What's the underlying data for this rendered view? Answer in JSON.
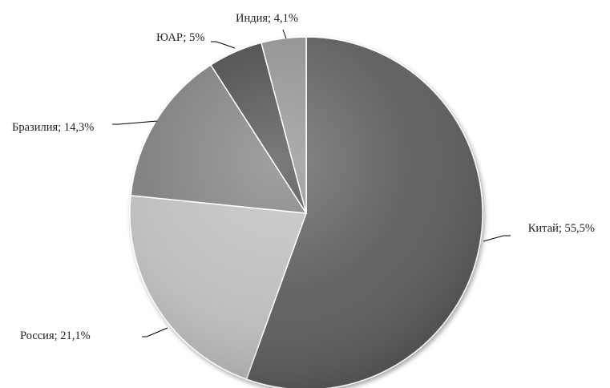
{
  "chart_data": {
    "type": "pie",
    "title": "",
    "slices": [
      {
        "name": "Китай",
        "value": 55.5,
        "label": "Китай; 55,5%",
        "color": "#5a5a5a"
      },
      {
        "name": "Россия",
        "value": 21.1,
        "label": "Россия; 21,1%",
        "color": "#bdbdbd"
      },
      {
        "name": "Бразилия",
        "value": 14.3,
        "label": "Бразилия; 14,3%",
        "color": "#7b7b7b"
      },
      {
        "name": "ЮАР",
        "value": 5.0,
        "label": "ЮАР; 5%",
        "color": "#474747"
      },
      {
        "name": "Индия",
        "value": 4.1,
        "label": "Индия; 4,1%",
        "color": "#8e8e8e"
      }
    ],
    "start": "12 o'clock",
    "direction": "clockwise",
    "legend": "none",
    "data_labels": "outside-with-leader-lines"
  }
}
